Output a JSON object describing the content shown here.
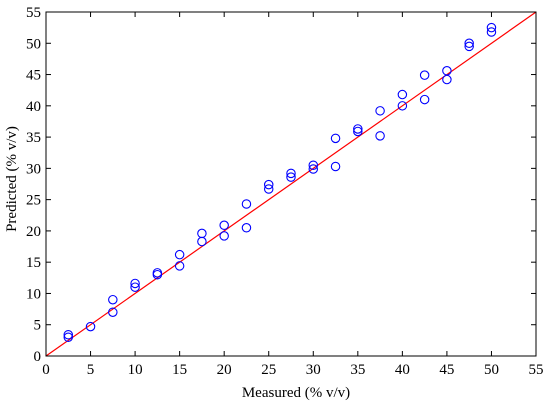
{
  "chart_data": {
    "type": "scatter",
    "title": "",
    "xlabel": "Measured (% v/v)",
    "ylabel": "Predicted (% v/v)",
    "xlim": [
      0,
      55
    ],
    "ylim": [
      0,
      55
    ],
    "xticks": [
      0,
      5,
      10,
      15,
      20,
      25,
      30,
      35,
      40,
      45,
      50,
      55
    ],
    "yticks": [
      0,
      5,
      10,
      15,
      20,
      25,
      30,
      35,
      40,
      45,
      50,
      55
    ],
    "grid": false,
    "legend": "none",
    "series": [
      {
        "marker": "open-circle",
        "color": "#0000ff",
        "points": [
          [
            2.5,
            3.4
          ],
          [
            2.5,
            3.0
          ],
          [
            5.0,
            4.7
          ],
          [
            7.5,
            9.0
          ],
          [
            7.5,
            7.0
          ],
          [
            10.0,
            11.6
          ],
          [
            10.0,
            11.0
          ],
          [
            12.5,
            13.3
          ],
          [
            12.5,
            13.0
          ],
          [
            15.0,
            16.2
          ],
          [
            15.0,
            14.4
          ],
          [
            17.5,
            19.6
          ],
          [
            17.5,
            18.3
          ],
          [
            20.0,
            20.9
          ],
          [
            20.0,
            19.2
          ],
          [
            22.5,
            24.3
          ],
          [
            22.5,
            20.5
          ],
          [
            25.0,
            27.4
          ],
          [
            25.0,
            26.7
          ],
          [
            27.5,
            29.2
          ],
          [
            27.5,
            28.6
          ],
          [
            30.0,
            30.5
          ],
          [
            30.0,
            29.9
          ],
          [
            32.5,
            34.8
          ],
          [
            32.5,
            30.3
          ],
          [
            35.0,
            36.3
          ],
          [
            35.0,
            35.9
          ],
          [
            37.5,
            39.2
          ],
          [
            37.5,
            35.2
          ],
          [
            40.0,
            41.8
          ],
          [
            40.0,
            40.0
          ],
          [
            42.5,
            44.9
          ],
          [
            42.5,
            41.0
          ],
          [
            45.0,
            45.6
          ],
          [
            45.0,
            44.2
          ],
          [
            47.5,
            50.0
          ],
          [
            47.5,
            49.5
          ],
          [
            50.0,
            52.5
          ],
          [
            50.0,
            51.8
          ]
        ]
      }
    ],
    "reference_line": {
      "from": [
        0,
        0
      ],
      "to": [
        55,
        55
      ],
      "color": "#ff0000"
    }
  }
}
